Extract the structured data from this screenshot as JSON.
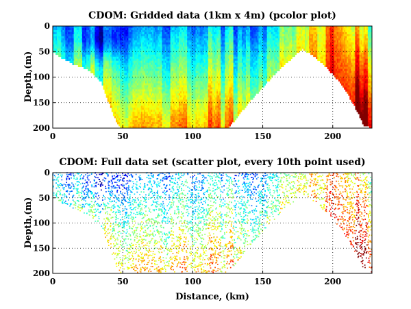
{
  "chart_data": [
    {
      "type": "heatmap",
      "title": "CDOM: Gridded data (1km x 4m) (pcolor plot)",
      "xlabel": "",
      "ylabel": "Depth,(m)",
      "xlim": [
        0,
        228
      ],
      "ylim": [
        200,
        0
      ],
      "xticks": [
        0,
        50,
        100,
        150,
        200
      ],
      "yticks": [
        0,
        50,
        100,
        150,
        200
      ],
      "grid": true,
      "colormap": "jet",
      "bottom_profile": {
        "x": [
          0,
          5,
          15,
          25,
          35,
          40,
          45,
          48,
          52,
          56,
          60,
          80,
          100,
          115,
          125,
          130,
          140,
          150,
          160,
          170,
          178,
          185,
          195,
          205,
          212,
          218,
          222,
          228
        ],
        "depth": [
          50,
          60,
          75,
          85,
          110,
          150,
          185,
          200,
          200,
          200,
          200,
          200,
          200,
          200,
          200,
          185,
          150,
          120,
          90,
          65,
          45,
          55,
          80,
          110,
          140,
          170,
          195,
          200
        ]
      }
    },
    {
      "type": "scatter",
      "title": "CDOM: Full data set (scatter plot, every 10th point used)",
      "xlabel": "Distance, (km)",
      "ylabel": "Depth,(m)",
      "xlim": [
        0,
        228
      ],
      "ylim": [
        200,
        0
      ],
      "xticks": [
        0,
        50,
        100,
        150,
        200
      ],
      "yticks": [
        0,
        50,
        100,
        150,
        200
      ],
      "grid": true,
      "colormap": "jet",
      "bottom_profile": {
        "x": [
          0,
          5,
          15,
          25,
          35,
          40,
          45,
          48,
          52,
          56,
          60,
          80,
          100,
          115,
          125,
          130,
          140,
          150,
          160,
          170,
          178,
          185,
          195,
          205,
          212,
          218,
          222,
          228
        ],
        "depth": [
          50,
          60,
          75,
          85,
          110,
          150,
          185,
          200,
          200,
          200,
          200,
          200,
          200,
          200,
          200,
          185,
          150,
          120,
          90,
          65,
          45,
          55,
          80,
          110,
          140,
          170,
          195,
          200
        ]
      }
    }
  ]
}
